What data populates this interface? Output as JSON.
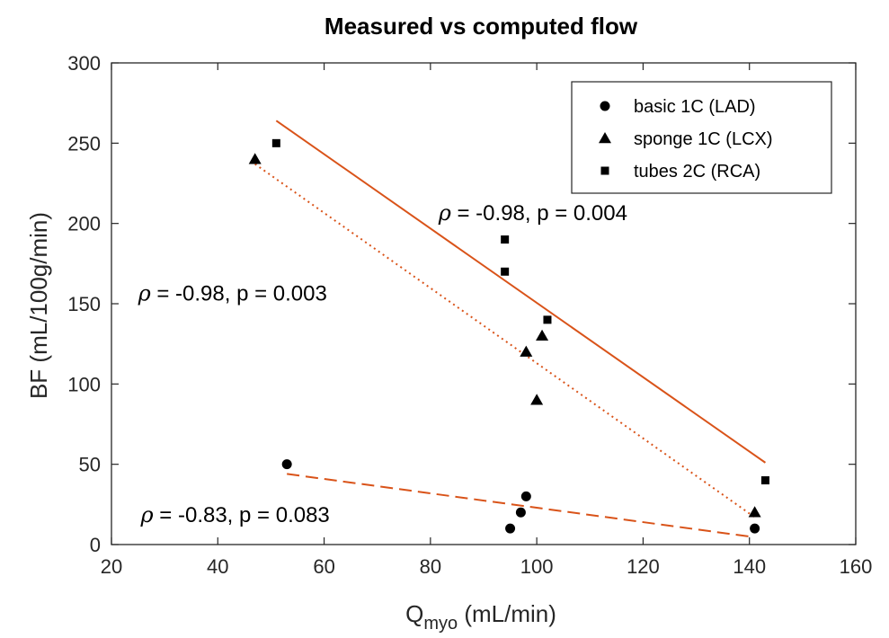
{
  "chart_data": {
    "type": "scatter",
    "title": "Measured vs computed flow",
    "xlabel": {
      "main": "Q",
      "sub": "myo",
      "unit": " (mL/min)"
    },
    "ylabel": "BF (mL/100g/min)",
    "xlim": [
      20,
      160
    ],
    "ylim": [
      0,
      300
    ],
    "xticks": [
      20,
      40,
      60,
      80,
      100,
      120,
      140,
      160
    ],
    "yticks": [
      0,
      50,
      100,
      150,
      200,
      250,
      300
    ],
    "grid": false,
    "legend_position": "top-right",
    "series": [
      {
        "name": "basic 1C (LAD)",
        "marker": "circle",
        "points": [
          [
            53,
            50
          ],
          [
            95,
            10
          ],
          [
            97,
            20
          ],
          [
            98,
            30
          ],
          [
            141,
            10
          ]
        ],
        "fit": {
          "style": "dashed",
          "color": "#d95319",
          "x": [
            53,
            140
          ],
          "y": [
            44,
            5
          ]
        },
        "annotation": {
          "rho_symbol": "ρ",
          "text": " = -0.83, p = 0.083",
          "x": 25.5,
          "y": 14
        }
      },
      {
        "name": "sponge 1C (LCX)",
        "marker": "triangle",
        "points": [
          [
            47,
            240
          ],
          [
            98,
            120
          ],
          [
            100,
            90
          ],
          [
            101,
            130
          ],
          [
            141,
            20
          ]
        ],
        "fit": {
          "style": "dotted",
          "color": "#d95319",
          "x": [
            47,
            141
          ],
          "y": [
            237,
            17
          ]
        },
        "annotation": {
          "rho_symbol": "ρ",
          "text": " = -0.98, p = 0.003",
          "x": 25,
          "y": 152
        }
      },
      {
        "name": "tubes 2C (RCA)",
        "marker": "square",
        "points": [
          [
            51,
            250
          ],
          [
            94,
            190
          ],
          [
            94,
            170
          ],
          [
            102,
            140
          ],
          [
            143,
            40
          ]
        ],
        "fit": {
          "style": "solid",
          "color": "#d95319",
          "x": [
            51,
            143
          ],
          "y": [
            264,
            51
          ]
        },
        "annotation": {
          "rho_symbol": "ρ",
          "text": " = -0.98, p = 0.004",
          "x": 81.5,
          "y": 202
        }
      }
    ]
  }
}
